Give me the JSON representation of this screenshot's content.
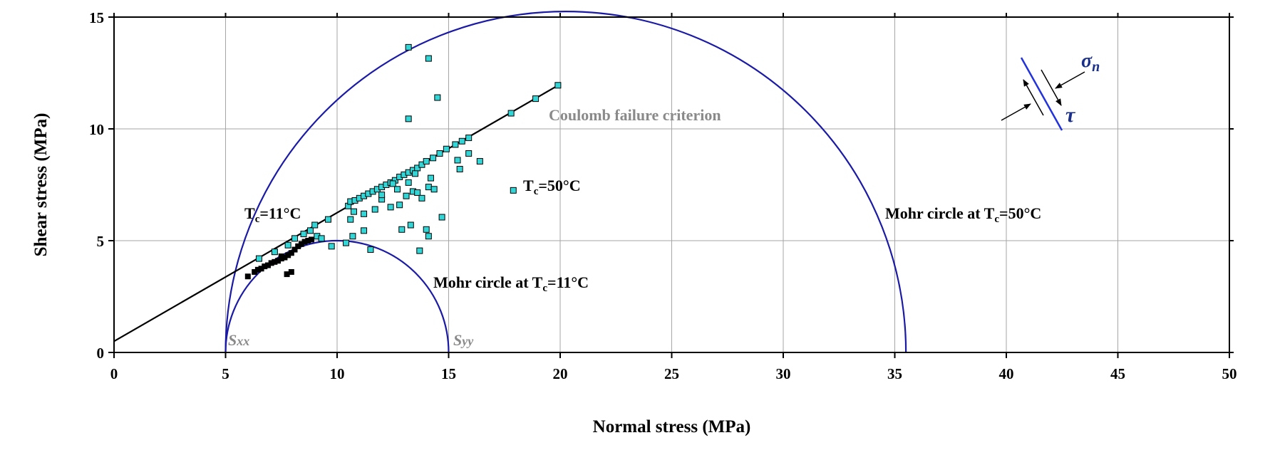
{
  "chart_data": {
    "type": "scatter",
    "xlabel": "Normal stress (MPa)",
    "ylabel": "Shear stress (MPa)",
    "xlim": [
      0,
      50
    ],
    "ylim": [
      0,
      15
    ],
    "xticks": [
      0,
      5,
      10,
      15,
      20,
      25,
      30,
      35,
      40,
      45,
      50
    ],
    "yticks": [
      0,
      5,
      10,
      15
    ],
    "grid": true,
    "colors": {
      "circle": "#1a1aa6",
      "line": "#000000",
      "cold_points": "#000000",
      "hot_points": "#33d6d6",
      "hot_edge": "#000000",
      "gray_text": "#8a8a8a",
      "inset_fault": "#2233dd",
      "inset_text": "#1a2f8a"
    },
    "coulomb_line": {
      "label": "Coulomb failure criterion",
      "points": [
        [
          0,
          0.5
        ],
        [
          20,
          12.0
        ]
      ]
    },
    "mohr_circles": [
      {
        "label_main": "Mohr circle at T",
        "label_sub": "c",
        "label_tail": "=11°C",
        "center": 10,
        "radius": 5
      },
      {
        "label_main": "Mohr circle at T",
        "label_sub": "c",
        "label_tail": "=50°C",
        "center": 20.25,
        "radius": 15.25
      }
    ],
    "series": [
      {
        "name": "Tc=11°C",
        "marker": "filled-square",
        "points": [
          [
            6.0,
            3.4
          ],
          [
            6.3,
            3.6
          ],
          [
            6.45,
            3.7
          ],
          [
            6.6,
            3.75
          ],
          [
            6.75,
            3.85
          ],
          [
            6.9,
            3.9
          ],
          [
            7.05,
            4.0
          ],
          [
            7.2,
            4.05
          ],
          [
            7.35,
            4.1
          ],
          [
            7.5,
            4.2
          ],
          [
            7.65,
            4.25
          ],
          [
            7.8,
            4.35
          ],
          [
            7.95,
            4.45
          ],
          [
            8.1,
            4.6
          ],
          [
            8.25,
            4.75
          ],
          [
            8.4,
            4.85
          ],
          [
            8.55,
            4.95
          ],
          [
            8.7,
            5.0
          ],
          [
            8.85,
            5.05
          ],
          [
            7.75,
            3.5
          ],
          [
            7.95,
            3.6
          ],
          [
            7.5,
            4.3
          ]
        ]
      },
      {
        "name": "Tc=50°C",
        "marker": "cyan-square",
        "points": [
          [
            6.5,
            4.2
          ],
          [
            7.2,
            4.5
          ],
          [
            7.8,
            4.8
          ],
          [
            8.1,
            5.1
          ],
          [
            8.5,
            5.3
          ],
          [
            8.8,
            5.45
          ],
          [
            9.1,
            5.2
          ],
          [
            9.3,
            5.1
          ],
          [
            9.0,
            5.7
          ],
          [
            9.6,
            5.95
          ],
          [
            9.75,
            4.75
          ],
          [
            10.4,
            4.9
          ],
          [
            10.7,
            5.2
          ],
          [
            10.6,
            5.95
          ],
          [
            10.75,
            6.3
          ],
          [
            10.5,
            6.55
          ],
          [
            10.6,
            6.75
          ],
          [
            10.8,
            6.8
          ],
          [
            11.0,
            6.9
          ],
          [
            11.2,
            7.0
          ],
          [
            11.4,
            7.1
          ],
          [
            11.6,
            7.2
          ],
          [
            11.8,
            7.3
          ],
          [
            12.0,
            7.4
          ],
          [
            12.2,
            7.5
          ],
          [
            12.4,
            7.6
          ],
          [
            12.6,
            7.7
          ],
          [
            12.8,
            7.85
          ],
          [
            13.0,
            7.95
          ],
          [
            13.2,
            8.05
          ],
          [
            13.4,
            8.15
          ],
          [
            13.6,
            8.25
          ],
          [
            13.8,
            8.4
          ],
          [
            14.0,
            8.55
          ],
          [
            14.3,
            8.7
          ],
          [
            14.6,
            8.9
          ],
          [
            14.9,
            9.1
          ],
          [
            15.3,
            9.3
          ],
          [
            15.6,
            9.45
          ],
          [
            15.9,
            9.6
          ],
          [
            17.8,
            10.7
          ],
          [
            18.9,
            11.35
          ],
          [
            19.9,
            11.95
          ],
          [
            11.2,
            6.2
          ],
          [
            11.7,
            6.4
          ],
          [
            12.0,
            6.85
          ],
          [
            12.4,
            6.5
          ],
          [
            12.8,
            6.6
          ],
          [
            13.1,
            7.0
          ],
          [
            13.4,
            7.2
          ],
          [
            13.6,
            7.15
          ],
          [
            13.8,
            6.9
          ],
          [
            14.1,
            7.4
          ],
          [
            14.2,
            7.8
          ],
          [
            13.2,
            7.6
          ],
          [
            12.7,
            7.3
          ],
          [
            11.2,
            5.45
          ],
          [
            11.5,
            4.6
          ],
          [
            12.9,
            5.5
          ],
          [
            13.3,
            5.7
          ],
          [
            13.7,
            4.55
          ],
          [
            14.0,
            5.5
          ],
          [
            14.1,
            5.2
          ],
          [
            14.7,
            6.05
          ],
          [
            15.4,
            8.6
          ],
          [
            15.5,
            8.2
          ],
          [
            15.9,
            8.9
          ],
          [
            16.4,
            8.55
          ],
          [
            17.9,
            7.25
          ],
          [
            13.2,
            10.45
          ],
          [
            14.5,
            11.4
          ],
          [
            14.1,
            13.15
          ],
          [
            13.2,
            13.65
          ],
          [
            12.5,
            7.55
          ],
          [
            12.0,
            7.05
          ],
          [
            13.5,
            8.0
          ],
          [
            14.35,
            7.3
          ]
        ]
      }
    ],
    "annotations": {
      "coulomb": "Coulomb failure criterion",
      "tc11_prefix": "T",
      "tc11_sub": "c",
      "tc11_tail": "=11°C",
      "tc50_prefix": "T",
      "tc50_sub": "c",
      "tc50_tail": "=50°C",
      "sxx": "S",
      "sxx_sub": "xx",
      "syy": "S",
      "syy_sub": "yy",
      "inset_sigma": "σ",
      "inset_sigma_sub": "n",
      "inset_tau": "τ"
    }
  }
}
